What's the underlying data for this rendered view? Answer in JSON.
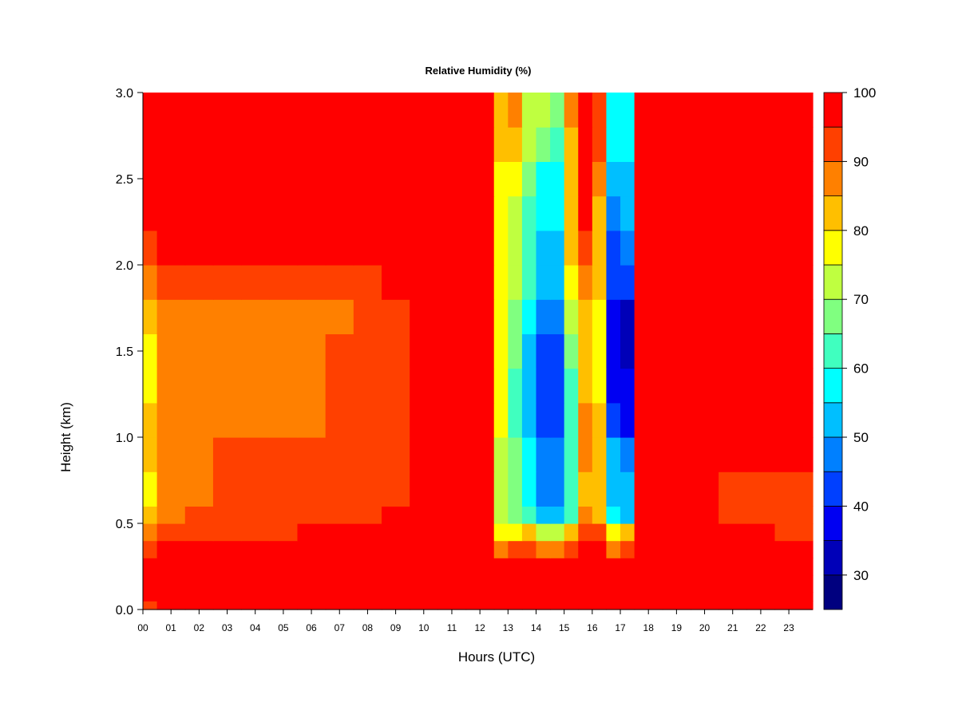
{
  "chart_data": {
    "type": "heatmap",
    "title": "Relative Humidity (%)",
    "xlabel": "Hours (UTC)",
    "ylabel": "Height (km)",
    "x_unit": "hours UTC",
    "y_unit": "km",
    "xlim": [
      0,
      23.85
    ],
    "ylim": [
      0,
      3.0
    ],
    "x_ticks": [
      "00",
      "01",
      "02",
      "03",
      "04",
      "05",
      "06",
      "07",
      "08",
      "09",
      "10",
      "11",
      "12",
      "13",
      "14",
      "15",
      "16",
      "17",
      "18",
      "19",
      "20",
      "21",
      "22",
      "23"
    ],
    "y_ticks": [
      "0.0",
      "0.5",
      "1.0",
      "1.5",
      "2.0",
      "2.5",
      "3.0"
    ],
    "colorbar": {
      "range": [
        25,
        100
      ],
      "tick_values": [
        30,
        40,
        50,
        60,
        70,
        80,
        90,
        100
      ],
      "tick_labels": [
        "30",
        "40",
        "50",
        "60",
        "70",
        "80",
        "90",
        "100"
      ],
      "levels": [
        25,
        30,
        35,
        40,
        45,
        50,
        55,
        60,
        65,
        70,
        75,
        80,
        85,
        90,
        95,
        100
      ],
      "colors": [
        "#00007f",
        "#0000b8",
        "#0000f2",
        "#0040ff",
        "#0080ff",
        "#00bfff",
        "#00ffff",
        "#40ffbf",
        "#80ff80",
        "#bfff40",
        "#ffff00",
        "#ffbf00",
        "#ff8000",
        "#ff4000",
        "#ff0000",
        "#800000"
      ]
    },
    "x_bins": [
      0.5,
      1.5,
      2.5,
      3.5,
      4.5,
      5.5,
      6.5,
      7.5,
      8.5,
      9.5,
      10.5,
      11.5,
      12.5,
      13.0,
      13.5,
      14.0,
      14.5,
      15.0,
      15.5,
      16.0,
      16.5,
      17.0,
      17.5,
      18.5,
      19.5,
      20.5,
      21.5,
      22.5,
      23.85
    ],
    "y_bins": [
      0.05,
      0.1,
      0.2,
      0.3,
      0.4,
      0.5,
      0.6,
      0.8,
      1.0,
      1.2,
      1.4,
      1.6,
      1.8,
      2.0,
      2.2,
      2.4,
      2.6,
      2.8,
      3.0
    ],
    "values": [
      [
        92,
        96,
        96,
        97,
        97,
        97,
        97,
        97,
        98,
        98,
        98,
        98,
        98,
        98,
        98,
        98,
        98,
        98,
        98,
        98,
        98,
        98,
        98,
        98,
        98,
        98,
        98,
        98,
        98
      ],
      [
        97,
        98,
        98,
        98,
        98,
        98,
        98,
        98,
        98,
        98,
        98,
        98,
        98,
        98,
        98,
        98,
        98,
        98,
        98,
        98,
        98,
        98,
        98,
        98,
        98,
        98,
        98,
        98,
        98
      ],
      [
        97,
        98,
        98,
        98,
        98,
        98,
        98,
        98,
        98,
        98,
        98,
        98,
        98,
        98,
        98,
        98,
        98,
        98,
        98,
        98,
        98,
        98,
        98,
        98,
        98,
        98,
        98,
        98,
        98
      ],
      [
        96,
        98,
        98,
        98,
        98,
        98,
        98,
        98,
        98,
        98,
        98,
        98,
        98,
        96,
        96,
        96,
        96,
        96,
        96,
        96,
        98,
        96,
        96,
        98,
        98,
        98,
        98,
        98,
        98
      ],
      [
        92,
        98,
        98,
        98,
        98,
        98,
        98,
        98,
        98,
        98,
        98,
        98,
        98,
        88,
        90,
        94,
        88,
        88,
        92,
        96,
        96,
        88,
        92,
        98,
        98,
        98,
        98,
        98,
        96
      ],
      [
        85,
        93,
        94,
        94,
        94,
        94,
        95,
        95,
        96,
        97,
        97,
        98,
        98,
        76,
        78,
        84,
        74,
        74,
        84,
        92,
        92,
        76,
        80,
        98,
        98,
        98,
        98,
        97,
        94
      ],
      [
        80,
        88,
        90,
        92,
        92,
        92,
        92,
        93,
        94,
        95,
        96,
        97,
        96,
        72,
        68,
        60,
        52,
        50,
        62,
        86,
        82,
        58,
        52,
        97,
        97,
        96,
        94,
        92,
        92
      ],
      [
        78,
        86,
        89,
        90,
        91,
        91,
        91,
        92,
        93,
        94,
        95,
        96,
        96,
        72,
        66,
        58,
        48,
        48,
        60,
        84,
        82,
        54,
        50,
        97,
        96,
        96,
        92,
        92,
        92
      ],
      [
        80,
        86,
        89,
        90,
        91,
        91,
        91,
        92,
        93,
        94,
        95,
        96,
        96,
        74,
        66,
        56,
        48,
        48,
        62,
        86,
        82,
        50,
        45,
        97,
        97,
        97,
        96,
        96,
        96
      ],
      [
        80,
        86,
        88,
        88,
        89,
        89,
        89,
        90,
        92,
        93,
        95,
        96,
        96,
        75,
        64,
        54,
        42,
        40,
        62,
        86,
        80,
        44,
        35,
        97,
        97,
        97,
        96,
        96,
        96
      ],
      [
        78,
        86,
        88,
        88,
        89,
        89,
        89,
        90,
        92,
        94,
        95,
        96,
        96,
        75,
        64,
        52,
        40,
        40,
        62,
        82,
        76,
        38,
        35,
        97,
        96,
        95,
        95,
        95,
        95
      ],
      [
        78,
        86,
        88,
        88,
        88,
        89,
        89,
        90,
        92,
        94,
        95,
        96,
        96,
        76,
        66,
        54,
        42,
        40,
        66,
        80,
        76,
        36,
        34,
        97,
        96,
        95,
        95,
        95,
        95
      ],
      [
        80,
        86,
        88,
        88,
        88,
        88,
        88,
        89,
        92,
        94,
        95,
        96,
        96,
        76,
        68,
        56,
        45,
        45,
        70,
        80,
        76,
        36,
        34,
        97,
        96,
        95,
        95,
        95,
        95
      ],
      [
        88,
        90,
        91,
        92,
        92,
        92,
        92,
        93,
        94,
        96,
        97,
        97,
        97,
        76,
        72,
        60,
        50,
        50,
        78,
        88,
        80,
        40,
        40,
        97,
        97,
        96,
        96,
        96,
        96
      ],
      [
        94,
        96,
        96,
        96,
        95,
        95,
        96,
        96,
        97,
        97,
        98,
        98,
        98,
        76,
        74,
        62,
        52,
        52,
        80,
        94,
        82,
        44,
        45,
        98,
        98,
        98,
        98,
        98,
        98
      ],
      [
        97,
        97,
        98,
        98,
        98,
        98,
        98,
        98,
        98,
        98,
        98,
        98,
        98,
        76,
        74,
        62,
        56,
        55,
        80,
        96,
        84,
        48,
        50,
        98,
        98,
        98,
        98,
        98,
        98
      ],
      [
        98,
        98,
        98,
        98,
        98,
        98,
        98,
        98,
        98,
        98,
        98,
        98,
        98,
        78,
        76,
        66,
        58,
        58,
        80,
        96,
        86,
        52,
        52,
        98,
        98,
        98,
        98,
        98,
        98
      ],
      [
        98,
        98,
        98,
        98,
        98,
        98,
        98,
        98,
        98,
        98,
        98,
        98,
        98,
        80,
        82,
        70,
        66,
        62,
        84,
        96,
        92,
        56,
        56,
        98,
        98,
        98,
        98,
        98,
        98
      ],
      [
        98,
        98,
        98,
        98,
        98,
        98,
        98,
        98,
        98,
        98,
        98,
        98,
        98,
        82,
        86,
        74,
        70,
        66,
        86,
        98,
        94,
        58,
        58,
        98,
        98,
        98,
        98,
        98,
        98
      ]
    ]
  }
}
